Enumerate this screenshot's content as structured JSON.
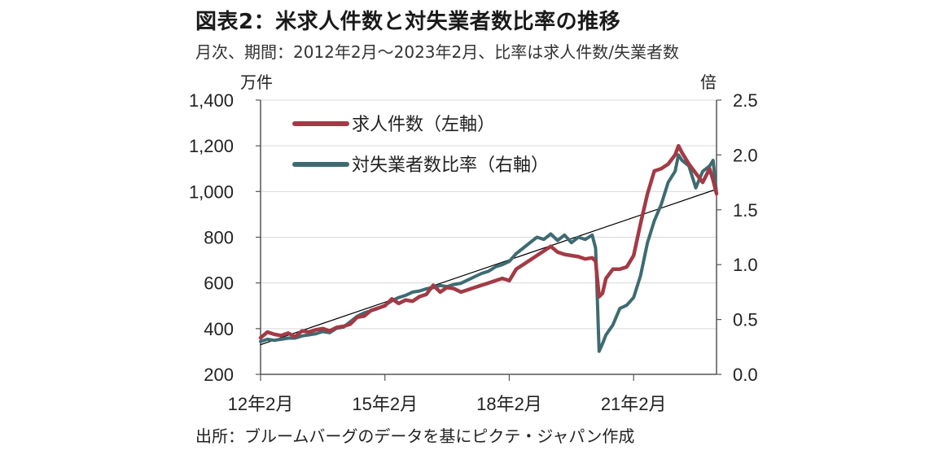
{
  "title": "図表2：米求人件数と対失業者数比率の推移",
  "subtitle": "月次、期間：2012年2月～2023年2月、比率は求人件数/失業者数",
  "source": "出所：ブルームバーグのデータを基にピクテ・ジャパン作成",
  "colors": {
    "job_openings": "#a33a45",
    "ratio": "#3e6b72",
    "trend": "#000000"
  },
  "chart_data": {
    "type": "line",
    "left_axis": {
      "unit_label": "万件",
      "min": 200,
      "max": 1400,
      "step": 200,
      "ticks": [
        "200",
        "400",
        "600",
        "800",
        "1,000",
        "1,200",
        "1,400"
      ]
    },
    "right_axis": {
      "unit_label": "倍",
      "min": 0.0,
      "max": 2.5,
      "step": 0.5,
      "ticks": [
        "0.0",
        "0.5",
        "1.0",
        "1.5",
        "2.0",
        "2.5"
      ]
    },
    "x_axis": {
      "start": "2012-02",
      "end": "2023-02",
      "ticks": [
        {
          "date": "2012-02",
          "label": "12年2月"
        },
        {
          "date": "2015-02",
          "label": "15年2月"
        },
        {
          "date": "2018-02",
          "label": "18年2月"
        },
        {
          "date": "2021-02",
          "label": "21年2月"
        }
      ]
    },
    "legend": [
      {
        "key": "job_openings",
        "label": "求人件数（左軸）"
      },
      {
        "key": "ratio",
        "label": "対失業者数比率（右軸）"
      }
    ],
    "series": [
      {
        "key": "job_openings",
        "name": "求人件数（左軸）",
        "axis": "left",
        "points": [
          [
            "2012-02",
            360
          ],
          [
            "2012-04",
            385
          ],
          [
            "2012-06",
            375
          ],
          [
            "2012-08",
            370
          ],
          [
            "2012-10",
            380
          ],
          [
            "2012-12",
            365
          ],
          [
            "2013-02",
            390
          ],
          [
            "2013-04",
            385
          ],
          [
            "2013-06",
            395
          ],
          [
            "2013-08",
            400
          ],
          [
            "2013-10",
            390
          ],
          [
            "2013-12",
            405
          ],
          [
            "2014-02",
            410
          ],
          [
            "2014-04",
            420
          ],
          [
            "2014-06",
            450
          ],
          [
            "2014-08",
            455
          ],
          [
            "2014-10",
            480
          ],
          [
            "2014-12",
            490
          ],
          [
            "2015-02",
            500
          ],
          [
            "2015-04",
            530
          ],
          [
            "2015-06",
            510
          ],
          [
            "2015-08",
            525
          ],
          [
            "2015-10",
            520
          ],
          [
            "2015-12",
            540
          ],
          [
            "2016-02",
            550
          ],
          [
            "2016-04",
            590
          ],
          [
            "2016-06",
            560
          ],
          [
            "2016-08",
            580
          ],
          [
            "2016-10",
            575
          ],
          [
            "2016-12",
            560
          ],
          [
            "2017-02",
            570
          ],
          [
            "2017-04",
            580
          ],
          [
            "2017-06",
            590
          ],
          [
            "2017-08",
            600
          ],
          [
            "2017-10",
            610
          ],
          [
            "2017-12",
            620
          ],
          [
            "2018-02",
            610
          ],
          [
            "2018-04",
            660
          ],
          [
            "2018-06",
            680
          ],
          [
            "2018-08",
            700
          ],
          [
            "2018-10",
            720
          ],
          [
            "2018-12",
            740
          ],
          [
            "2019-02",
            760
          ],
          [
            "2019-04",
            735
          ],
          [
            "2019-06",
            725
          ],
          [
            "2019-08",
            720
          ],
          [
            "2019-10",
            715
          ],
          [
            "2019-12",
            705
          ],
          [
            "2020-02",
            710
          ],
          [
            "2020-03",
            695
          ],
          [
            "2020-04",
            540
          ],
          [
            "2020-05",
            555
          ],
          [
            "2020-06",
            620
          ],
          [
            "2020-08",
            660
          ],
          [
            "2020-10",
            660
          ],
          [
            "2020-12",
            670
          ],
          [
            "2021-02",
            720
          ],
          [
            "2021-04",
            860
          ],
          [
            "2021-06",
            990
          ],
          [
            "2021-08",
            1090
          ],
          [
            "2021-10",
            1100
          ],
          [
            "2021-12",
            1120
          ],
          [
            "2022-02",
            1160
          ],
          [
            "2022-03",
            1200
          ],
          [
            "2022-04",
            1170
          ],
          [
            "2022-06",
            1120
          ],
          [
            "2022-08",
            1080
          ],
          [
            "2022-10",
            1040
          ],
          [
            "2022-12",
            1100
          ],
          [
            "2023-01",
            1050
          ],
          [
            "2023-02",
            990
          ]
        ]
      },
      {
        "key": "ratio",
        "name": "対失業者数比率（右軸）",
        "axis": "right",
        "points": [
          [
            "2012-02",
            0.3
          ],
          [
            "2012-04",
            0.32
          ],
          [
            "2012-06",
            0.31
          ],
          [
            "2012-08",
            0.32
          ],
          [
            "2012-10",
            0.33
          ],
          [
            "2012-12",
            0.33
          ],
          [
            "2013-02",
            0.35
          ],
          [
            "2013-04",
            0.36
          ],
          [
            "2013-06",
            0.37
          ],
          [
            "2013-08",
            0.39
          ],
          [
            "2013-10",
            0.38
          ],
          [
            "2013-12",
            0.42
          ],
          [
            "2014-02",
            0.43
          ],
          [
            "2014-04",
            0.48
          ],
          [
            "2014-06",
            0.53
          ],
          [
            "2014-08",
            0.56
          ],
          [
            "2014-10",
            0.58
          ],
          [
            "2014-12",
            0.6
          ],
          [
            "2015-02",
            0.63
          ],
          [
            "2015-04",
            0.67
          ],
          [
            "2015-06",
            0.7
          ],
          [
            "2015-08",
            0.72
          ],
          [
            "2015-10",
            0.75
          ],
          [
            "2015-12",
            0.76
          ],
          [
            "2016-02",
            0.78
          ],
          [
            "2016-04",
            0.79
          ],
          [
            "2016-06",
            0.81
          ],
          [
            "2016-08",
            0.8
          ],
          [
            "2016-10",
            0.82
          ],
          [
            "2016-12",
            0.83
          ],
          [
            "2017-02",
            0.86
          ],
          [
            "2017-04",
            0.89
          ],
          [
            "2017-06",
            0.92
          ],
          [
            "2017-08",
            0.94
          ],
          [
            "2017-10",
            0.98
          ],
          [
            "2017-12",
            1.0
          ],
          [
            "2018-02",
            1.03
          ],
          [
            "2018-04",
            1.1
          ],
          [
            "2018-06",
            1.15
          ],
          [
            "2018-08",
            1.2
          ],
          [
            "2018-10",
            1.25
          ],
          [
            "2018-12",
            1.23
          ],
          [
            "2019-02",
            1.28
          ],
          [
            "2019-04",
            1.22
          ],
          [
            "2019-06",
            1.27
          ],
          [
            "2019-08",
            1.2
          ],
          [
            "2019-10",
            1.25
          ],
          [
            "2019-12",
            1.23
          ],
          [
            "2020-02",
            1.27
          ],
          [
            "2020-03",
            1.15
          ],
          [
            "2020-04",
            0.21
          ],
          [
            "2020-05",
            0.28
          ],
          [
            "2020-06",
            0.36
          ],
          [
            "2020-08",
            0.45
          ],
          [
            "2020-10",
            0.6
          ],
          [
            "2020-12",
            0.63
          ],
          [
            "2021-02",
            0.7
          ],
          [
            "2021-04",
            0.9
          ],
          [
            "2021-06",
            1.2
          ],
          [
            "2021-08",
            1.4
          ],
          [
            "2021-10",
            1.55
          ],
          [
            "2021-12",
            1.75
          ],
          [
            "2022-02",
            1.85
          ],
          [
            "2022-03",
            2.0
          ],
          [
            "2022-04",
            1.95
          ],
          [
            "2022-06",
            1.9
          ],
          [
            "2022-08",
            1.7
          ],
          [
            "2022-10",
            1.85
          ],
          [
            "2022-12",
            1.9
          ],
          [
            "2023-01",
            1.95
          ],
          [
            "2023-02",
            1.65
          ]
        ]
      },
      {
        "key": "trend",
        "axis": "left",
        "points": [
          [
            "2012-02",
            330
          ],
          [
            "2023-02",
            1010
          ]
        ]
      }
    ]
  }
}
